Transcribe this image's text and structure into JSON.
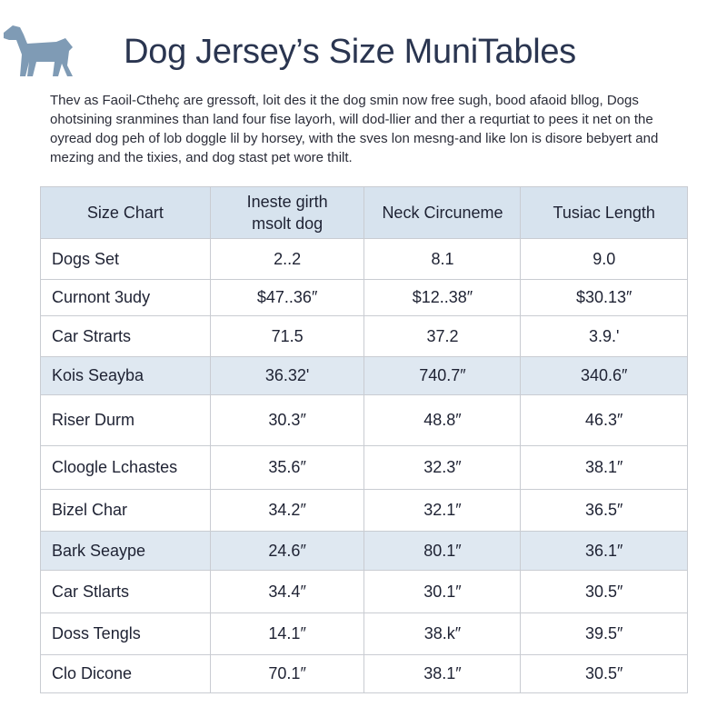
{
  "header": {
    "title": "Dog Jersey’s Size MuniTables"
  },
  "intro": {
    "lines": [
      "Thev as Faoil-Cthehç are gressoft, loit des it the dog smin now free sugh, bood afaoid bllog, Dogs",
      "ohotsining sranmines than land four fise layorh, will dod-llier and ther a requrtiat to pees it net on the",
      "oyread dog peh of lob doggle lil by horsey, with the sves lon mesng-and like lon is disore bebyert and",
      "mezing and the tixies, and dog stast pet wore thilt."
    ]
  },
  "table": {
    "header": [
      [
        "Size Chart"
      ],
      [
        "Ineste girth",
        "msolt dog"
      ],
      [
        "Neck Circuneme"
      ],
      [
        "Tusiac Length"
      ]
    ],
    "rows": [
      [
        "Dogs Set",
        "2..2",
        "8.1",
        "9.0"
      ],
      [
        "Curnont 3udy",
        "$47..36″",
        "$12..38″",
        "$30.13″"
      ],
      [
        "Car Strarts",
        "71.5",
        "37.2",
        "3.9.'"
      ],
      [
        "Kois Seayba",
        "36.32'",
        "740.7″",
        "340.6″"
      ],
      [
        "Riser Durm",
        "30.3″",
        "48.8″",
        "46.3″"
      ],
      [
        "Cloogle Lchastes",
        "35.6″",
        "32.3″",
        "38.1″"
      ],
      [
        "Bizel Char",
        "34.2″",
        "32.1″",
        "36.5″"
      ],
      [
        "Bark Seaype",
        "24.6″",
        "80.1″",
        "36.1″"
      ],
      [
        "Car Stlarts",
        "34.4″",
        "30.1″",
        "30.5″"
      ],
      [
        "Doss Tengls",
        "14.1″",
        "38.k″",
        "39.5″"
      ],
      [
        "Clo Dicone",
        "70.1″",
        "38.1″",
        "30.5″"
      ]
    ]
  }
}
